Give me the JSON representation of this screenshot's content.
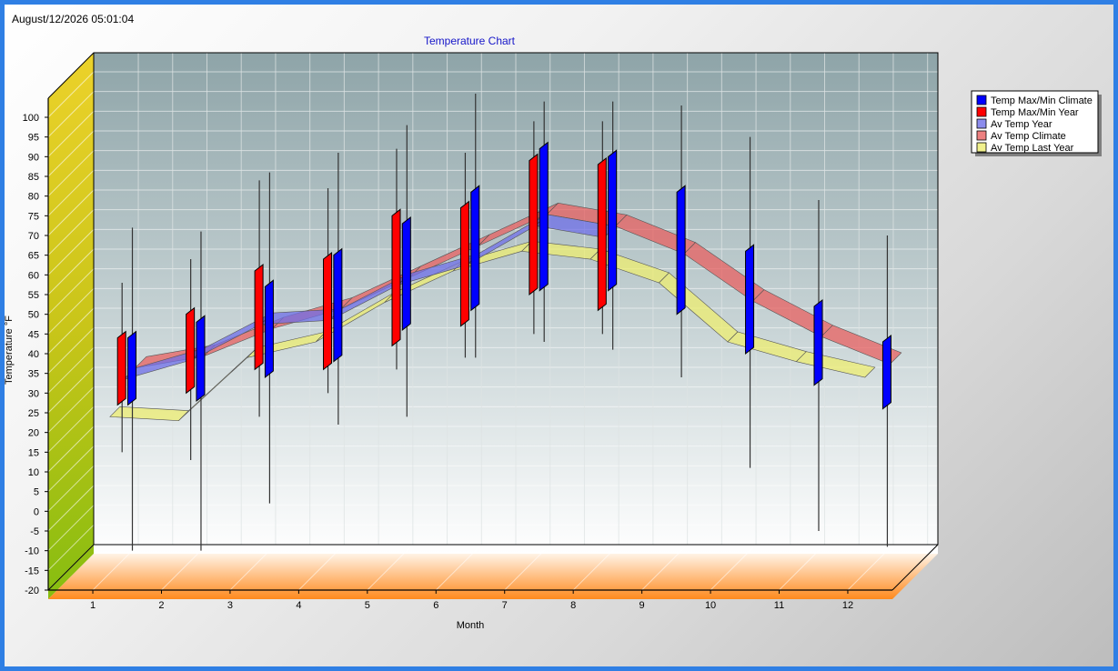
{
  "window": {
    "timestamp": "August/12/2026 05:01:04"
  },
  "chart_data": {
    "type": "stock-3d",
    "title": "Temperature Chart",
    "xlabel": "Month",
    "ylabel": "Temperature °F",
    "categories": [
      "1",
      "2",
      "3",
      "4",
      "5",
      "6",
      "7",
      "8",
      "9",
      "10",
      "11",
      "12"
    ],
    "ylim": [
      -20,
      100
    ],
    "yticks": [
      100,
      95,
      90,
      85,
      80,
      75,
      70,
      65,
      60,
      55,
      50,
      45,
      40,
      35,
      30,
      25,
      20,
      15,
      10,
      5,
      0,
      -5,
      -10,
      -15,
      -20
    ],
    "grid": true,
    "legend_position": "top-right",
    "series": [
      {
        "name": "Temp Max/Min Climate",
        "color": "#0000ff",
        "low": [
          27,
          28,
          34,
          38,
          46,
          51,
          56,
          56,
          50,
          40,
          32,
          26
        ],
        "high": [
          44,
          48,
          57,
          65,
          73,
          81,
          92,
          90,
          81,
          66,
          52,
          43
        ],
        "extreme_low": [
          -10,
          -10,
          2,
          22,
          24,
          39,
          43,
          41,
          34,
          11,
          -5,
          -9
        ],
        "extreme_high": [
          72,
          71,
          86,
          91,
          98,
          106,
          104,
          104,
          103,
          95,
          79,
          70
        ]
      },
      {
        "name": "Temp Max/Min Year",
        "color": "#ff0000",
        "low": [
          27,
          30,
          36,
          36,
          42,
          47,
          55,
          51,
          null,
          null,
          null,
          null
        ],
        "high": [
          44,
          50,
          61,
          64,
          75,
          77,
          89,
          88,
          null,
          null,
          null,
          null
        ],
        "extreme_low": [
          15,
          13,
          24,
          30,
          36,
          39,
          45,
          45,
          null,
          null,
          null,
          null
        ],
        "extreme_high": [
          58,
          64,
          84,
          82,
          92,
          91,
          99,
          99,
          null,
          null,
          null,
          null
        ]
      },
      {
        "name": "Av Temp Year",
        "color": "#6f6fe8",
        "values": [
          30,
          35,
          44,
          45,
          54,
          59,
          69,
          66,
          null,
          null,
          null,
          null
        ]
      },
      {
        "name": "Av Temp Climate",
        "color": "#e86060",
        "values": [
          30,
          33,
          40,
          45,
          53,
          61,
          69,
          66,
          59,
          47,
          38,
          31
        ]
      },
      {
        "name": "Av Temp Last Year",
        "color": "#eded70",
        "values": [
          24,
          23,
          39,
          43,
          53,
          61,
          66,
          64,
          58,
          43,
          38,
          34
        ]
      }
    ]
  }
}
